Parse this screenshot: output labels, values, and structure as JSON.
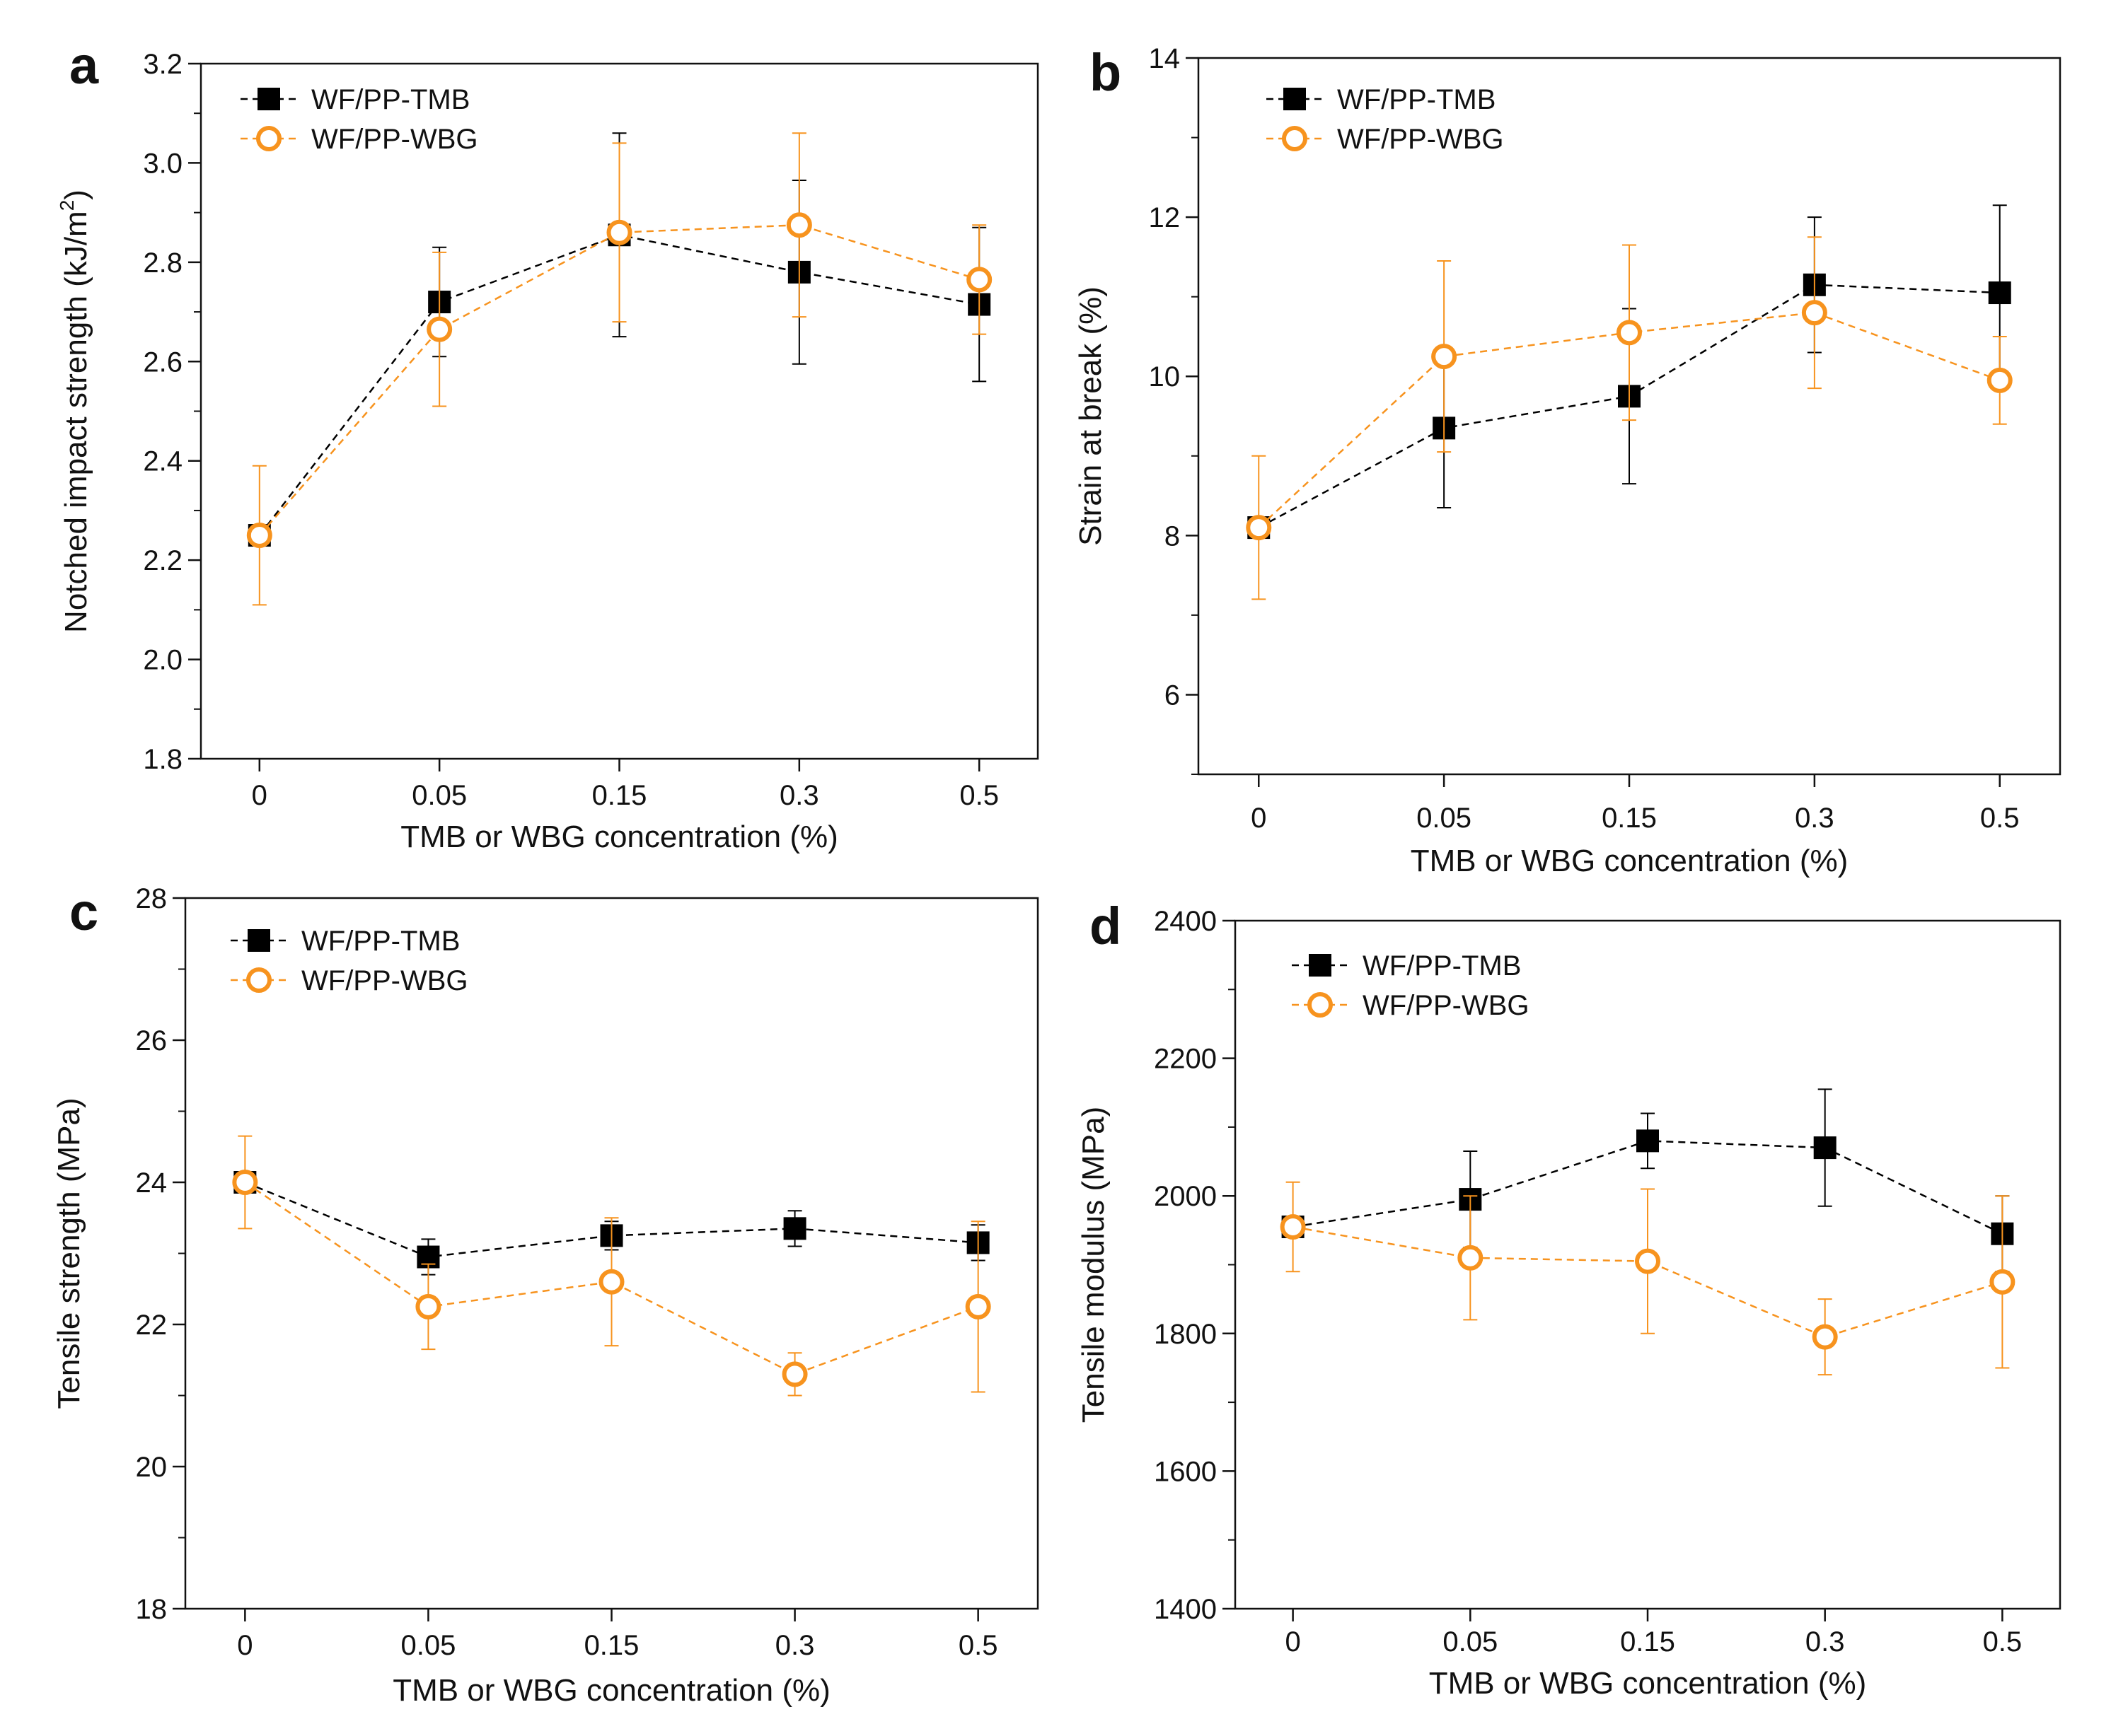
{
  "colors": {
    "tmb": "#000000",
    "wbg": "#f7931e",
    "axis": "#111111"
  },
  "chart_data": [
    {
      "panel": "a",
      "type": "line",
      "categories": [
        "0",
        "0.05",
        "0.15",
        "0.3",
        "0.5"
      ],
      "xlabel": "TMB or WBG concentration (%)",
      "ylabel": "Notched impact strength (kJ/m",
      "ylabel_sup": "2",
      "ylabel_end": ")",
      "ylim": [
        1.8,
        3.2
      ],
      "yticks": [
        1.8,
        2.0,
        2.2,
        2.4,
        2.6,
        2.8,
        3.0,
        3.2
      ],
      "ytick_labels": [
        "1.8",
        "2.0",
        "2.2",
        "2.4",
        "2.6",
        "2.8",
        "3.0",
        "3.2"
      ],
      "legend_position": "top-left",
      "series": [
        {
          "name": "WF/PP-TMB",
          "marker": "square",
          "values": [
            2.25,
            2.72,
            2.855,
            2.78,
            2.715
          ],
          "errors": [
            0.02,
            0.11,
            0.205,
            0.185,
            0.155
          ]
        },
        {
          "name": "WF/PP-WBG",
          "marker": "circle",
          "values": [
            2.25,
            2.665,
            2.86,
            2.875,
            2.765
          ],
          "errors": [
            0.14,
            0.155,
            0.18,
            0.185,
            0.11
          ]
        }
      ]
    },
    {
      "panel": "b",
      "type": "line",
      "categories": [
        "0",
        "0.05",
        "0.15",
        "0.3",
        "0.5"
      ],
      "xlabel": "TMB or WBG concentration (%)",
      "ylabel": "Strain at break (%)",
      "ylim": [
        5,
        14
      ],
      "yticks": [
        6,
        8,
        10,
        12,
        14
      ],
      "ytick_labels": [
        "6",
        "8",
        "10",
        "12",
        "14"
      ],
      "legend_position": "top-left",
      "series": [
        {
          "name": "WF/PP-TMB",
          "marker": "square",
          "values": [
            8.1,
            9.35,
            9.75,
            11.15,
            11.05
          ],
          "errors": [
            0.1,
            1.0,
            1.1,
            0.85,
            1.1
          ]
        },
        {
          "name": "WF/PP-WBG",
          "marker": "circle",
          "values": [
            8.1,
            10.25,
            10.55,
            10.8,
            9.95
          ],
          "errors": [
            0.9,
            1.2,
            1.1,
            0.95,
            0.55
          ]
        }
      ]
    },
    {
      "panel": "c",
      "type": "line",
      "categories": [
        "0",
        "0.05",
        "0.15",
        "0.3",
        "0.5"
      ],
      "xlabel": "TMB or WBG concentration (%)",
      "ylabel": "Tensile strength (MPa)",
      "ylim": [
        18,
        28
      ],
      "yticks": [
        18,
        20,
        22,
        24,
        26,
        28
      ],
      "ytick_labels": [
        "18",
        "20",
        "22",
        "24",
        "26",
        "28"
      ],
      "legend_position": "top-left",
      "series": [
        {
          "name": "WF/PP-TMB",
          "marker": "square",
          "values": [
            24.0,
            22.95,
            23.25,
            23.35,
            23.15
          ],
          "errors": [
            0.1,
            0.25,
            0.2,
            0.25,
            0.25
          ]
        },
        {
          "name": "WF/PP-WBG",
          "marker": "circle",
          "values": [
            24.0,
            22.25,
            22.6,
            21.3,
            22.25
          ],
          "errors": [
            0.65,
            0.6,
            0.9,
            0.3,
            1.2
          ]
        }
      ]
    },
    {
      "panel": "d",
      "type": "line",
      "categories": [
        "0",
        "0.05",
        "0.15",
        "0.3",
        "0.5"
      ],
      "xlabel": "TMB or WBG concentration (%)",
      "ylabel": "Tensile modulus (MPa)",
      "ylim": [
        1400,
        2400
      ],
      "yticks": [
        1400,
        1600,
        1800,
        2000,
        2200,
        2400
      ],
      "ytick_labels": [
        "1400",
        "1600",
        "1800",
        "2000",
        "2200",
        "2400"
      ],
      "legend_position": "top-left",
      "series": [
        {
          "name": "WF/PP-TMB",
          "marker": "square",
          "values": [
            1955,
            1995,
            2080,
            2070,
            1945
          ],
          "errors": [
            5,
            70,
            40,
            85,
            55
          ]
        },
        {
          "name": "WF/PP-WBG",
          "marker": "circle",
          "values": [
            1955,
            1910,
            1905,
            1795,
            1875
          ],
          "errors": [
            65,
            90,
            105,
            55,
            125
          ]
        }
      ]
    }
  ]
}
